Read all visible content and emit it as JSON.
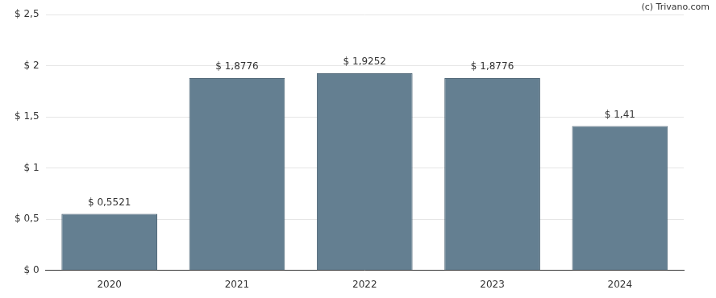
{
  "chart_data": {
    "type": "bar",
    "annotation": "(c) Trivano.com",
    "categories": [
      "2020",
      "2021",
      "2022",
      "2023",
      "2024"
    ],
    "values": [
      0.5521,
      1.8776,
      1.9252,
      1.8776,
      1.41
    ],
    "value_labels": [
      "$ 0,5521",
      "$ 1,8776",
      "$ 1,9252",
      "$ 1,8776",
      "$ 1,41"
    ],
    "data_labels": true,
    "color": "#647f91",
    "ylim": [
      0,
      2.5
    ],
    "yticks": [
      {
        "value": 0,
        "label": "$ 0"
      },
      {
        "value": 0.5,
        "label": "$ 0,5"
      },
      {
        "value": 1,
        "label": "$ 1"
      },
      {
        "value": 1.5,
        "label": "$ 1,5"
      },
      {
        "value": 2,
        "label": "$ 2"
      },
      {
        "value": 2.5,
        "label": "$ 2,5"
      }
    ],
    "grid": true
  }
}
